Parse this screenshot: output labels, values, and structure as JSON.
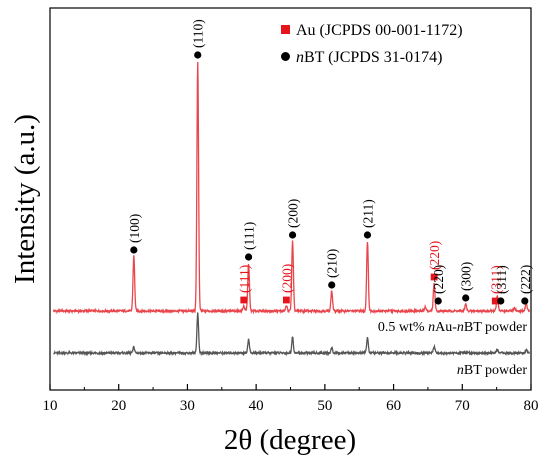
{
  "chart_data": {
    "type": "line",
    "title": "",
    "xlabel": "2θ (degree)",
    "ylabel": "Intensity (a.u.)",
    "xlim": [
      10,
      80
    ],
    "x_ticks": [
      10,
      20,
      30,
      40,
      50,
      60,
      70,
      80
    ],
    "grid": false,
    "legend_position": "top-right",
    "legend": [
      {
        "marker": "square",
        "color": "#e8141c",
        "text": "Au (JCPDS 00-001-1172)"
      },
      {
        "marker": "circle",
        "color": "#000000",
        "text": "nBT (JCPDS 31-0174)",
        "italic_prefix": "n",
        "rest": "BT (JCPDS 31-0174)"
      }
    ],
    "series": [
      {
        "name": "0.5 wt% nAu-nBT powder",
        "label_parts": [
          {
            "text": "0.5 wt% ",
            "italic": false
          },
          {
            "text": "n",
            "italic": true
          },
          {
            "text": "Au-",
            "italic": false
          },
          {
            "text": "n",
            "italic": true
          },
          {
            "text": "BT powder",
            "italic": false
          }
        ],
        "color": "#e8464c",
        "baseline": 0,
        "peaks": [
          {
            "x": 22.2,
            "height": 55
          },
          {
            "x": 31.5,
            "height": 250
          },
          {
            "x": 38.2,
            "height": 5
          },
          {
            "x": 38.9,
            "height": 48
          },
          {
            "x": 44.4,
            "height": 5
          },
          {
            "x": 45.3,
            "height": 70
          },
          {
            "x": 51.0,
            "height": 20
          },
          {
            "x": 56.2,
            "height": 70
          },
          {
            "x": 64.6,
            "height": 4
          },
          {
            "x": 65.9,
            "height": 28
          },
          {
            "x": 70.5,
            "height": 7
          },
          {
            "x": 75.1,
            "height": 16
          },
          {
            "x": 77.6,
            "height": 3
          },
          {
            "x": 79.3,
            "height": 8
          }
        ]
      },
      {
        "name": "nBT powder",
        "label_parts": [
          {
            "text": "n",
            "italic": true
          },
          {
            "text": "BT powder",
            "italic": false
          }
        ],
        "color": "#555555",
        "baseline": 0,
        "peaks": [
          {
            "x": 22.2,
            "height": 6
          },
          {
            "x": 31.5,
            "height": 40
          },
          {
            "x": 38.9,
            "height": 14
          },
          {
            "x": 45.3,
            "height": 16
          },
          {
            "x": 51.0,
            "height": 5
          },
          {
            "x": 56.2,
            "height": 16
          },
          {
            "x": 65.9,
            "height": 7
          },
          {
            "x": 75.1,
            "height": 3
          },
          {
            "x": 79.3,
            "height": 3
          }
        ]
      }
    ],
    "annotations": [
      {
        "label": "(100)",
        "x": 22.2,
        "marker": "circle",
        "color": "#000000"
      },
      {
        "label": "(110)",
        "x": 31.5,
        "marker": "circle",
        "color": "#000000"
      },
      {
        "label": "(111)",
        "x": 38.2,
        "marker": "square",
        "color": "#e8141c"
      },
      {
        "label": "(111)",
        "x": 38.9,
        "marker": "circle",
        "color": "#000000"
      },
      {
        "label": "(200)",
        "x": 44.4,
        "marker": "square",
        "color": "#e8141c"
      },
      {
        "label": "(200)",
        "x": 45.3,
        "marker": "circle",
        "color": "#000000"
      },
      {
        "label": "(210)",
        "x": 51.0,
        "marker": "circle",
        "color": "#000000"
      },
      {
        "label": "(211)",
        "x": 56.2,
        "marker": "circle",
        "color": "#000000"
      },
      {
        "label": "(220)",
        "x": 65.9,
        "marker": "square",
        "color": "#e8141c"
      },
      {
        "label": "(220)",
        "x": 66.5,
        "marker": "circle",
        "color": "#000000"
      },
      {
        "label": "(300)",
        "x": 70.5,
        "marker": "circle",
        "color": "#000000"
      },
      {
        "label": "(311)",
        "x": 74.8,
        "marker": "square",
        "color": "#e8141c"
      },
      {
        "label": "(311)",
        "x": 75.6,
        "marker": "circle",
        "color": "#000000"
      },
      {
        "label": "(222)",
        "x": 79.1,
        "marker": "circle",
        "color": "#000000"
      }
    ]
  }
}
